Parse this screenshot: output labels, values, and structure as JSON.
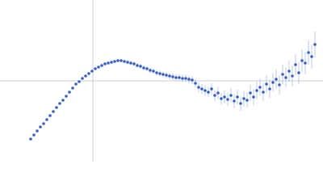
{
  "chart_data": {
    "type": "scatter",
    "x": [
      -77,
      -73,
      -69,
      -65,
      -61,
      -57,
      -53,
      -49,
      -45,
      -41,
      -37,
      -33,
      -29,
      -25,
      -21,
      -17,
      -13,
      -9,
      -5,
      -1,
      3,
      7,
      11,
      15,
      19,
      23,
      27,
      31,
      35,
      39,
      43,
      47,
      51,
      55,
      59,
      63,
      67,
      71,
      75,
      79,
      83,
      87,
      91,
      95,
      99,
      103,
      107,
      111,
      115,
      119,
      123,
      127,
      131,
      135,
      139,
      143,
      147,
      151,
      155,
      159,
      163,
      167,
      171,
      175,
      179,
      183,
      187,
      191,
      195,
      199,
      203,
      207,
      211,
      215,
      219,
      223,
      227,
      231,
      235,
      239,
      243,
      247,
      251,
      255,
      259,
      263,
      267,
      271,
      275
    ],
    "values": [
      -72,
      -67,
      -62,
      -57,
      -53,
      -48,
      -43,
      -38,
      -33,
      -28,
      -24,
      -19,
      -14,
      -9,
      -4,
      -1,
      3,
      6,
      9,
      12,
      15,
      17,
      19,
      21,
      22,
      23,
      24,
      25,
      25,
      24,
      23,
      22,
      21,
      19,
      18,
      16,
      15,
      13,
      12,
      10,
      9,
      8,
      7,
      6,
      5,
      4,
      4,
      3,
      3,
      2,
      1,
      -3,
      -8,
      -10,
      -12,
      -14,
      -10,
      -18,
      -15,
      -22,
      -20,
      -23,
      -18,
      -25,
      -20,
      -28,
      -22,
      -24,
      -15,
      -20,
      -12,
      -8,
      -14,
      -4,
      -10,
      -2,
      2,
      -5,
      8,
      4,
      12,
      6,
      20,
      10,
      25,
      22,
      35,
      30,
      45
    ],
    "errors": [
      1,
      1,
      1,
      1,
      1,
      1,
      1,
      1,
      1,
      1,
      1,
      1,
      1,
      1,
      1,
      1,
      1,
      1,
      1.5,
      1.5,
      1.5,
      1.5,
      2,
      2,
      2,
      2,
      2,
      2,
      2,
      2,
      2.5,
      2.5,
      2.5,
      2.5,
      3,
      3,
      3,
      3,
      3,
      3.5,
      3.5,
      3.5,
      4,
      4,
      4,
      4,
      4.5,
      4.5,
      5,
      5,
      5,
      5.5,
      6,
      6,
      6.5,
      6.5,
      7,
      7,
      7.5,
      7.5,
      8,
      8,
      8.5,
      8.5,
      9,
      9,
      9.5,
      9.5,
      10,
      10,
      10.5,
      10.5,
      11,
      11,
      11.5,
      11.5,
      12,
      12,
      12.5,
      12.5,
      13,
      13,
      13.5,
      13.5,
      14,
      14,
      15,
      15,
      16
    ],
    "color": "#3b62be",
    "error_color": "#a9bce6",
    "xlim": [
      -115,
      285
    ],
    "ylim": [
      -100,
      100
    ],
    "zero_lines": true
  }
}
